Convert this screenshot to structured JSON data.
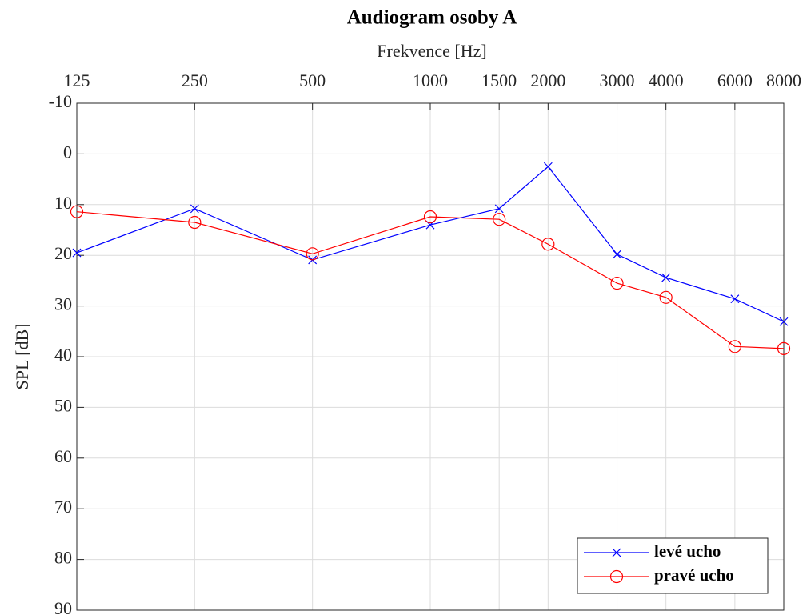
{
  "chart_data": {
    "type": "line",
    "title": "Audiogram osoby A",
    "x_label": "Frekvence [Hz]",
    "y_label": "SPL [dB]",
    "x_scale": "log",
    "x_axis_position": "top",
    "y_reversed": true,
    "grid": true,
    "legend_position": "lower right",
    "x": [
      125,
      250,
      500,
      1000,
      1500,
      2000,
      3000,
      4000,
      6000,
      8000
    ],
    "xlim": [
      125,
      8000
    ],
    "xticks": [
      125,
      250,
      500,
      1000,
      1500,
      2000,
      3000,
      4000,
      6000,
      8000
    ],
    "ylim": [
      -10,
      90
    ],
    "yticks": [
      -10,
      0,
      10,
      20,
      30,
      40,
      50,
      60,
      70,
      80,
      90
    ],
    "series": [
      {
        "name": "levé ucho",
        "color": "#0000ff",
        "marker": "x",
        "values": [
          19.5,
          10.8,
          20.9,
          14,
          10.8,
          2.5,
          19.8,
          24.4,
          28.6,
          33.1
        ]
      },
      {
        "name": "pravé ucho",
        "color": "#ff0000",
        "marker": "o",
        "values": [
          11.4,
          13.5,
          19.7,
          12.4,
          12.9,
          17.8,
          25.5,
          28.3,
          38,
          38.4
        ]
      }
    ]
  }
}
